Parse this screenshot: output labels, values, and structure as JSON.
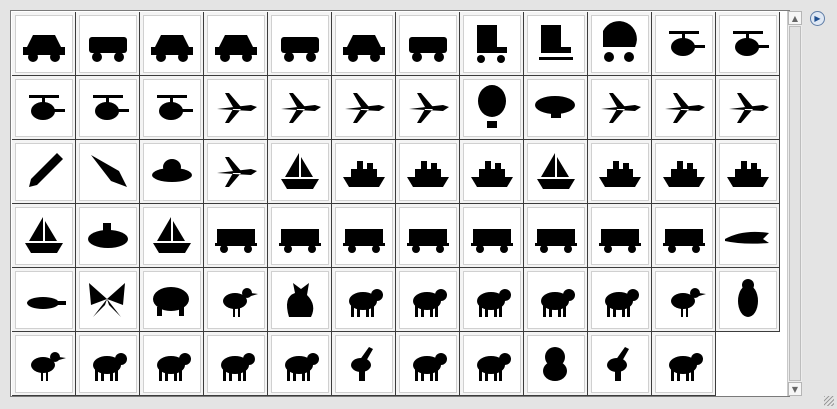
{
  "panel": {
    "menu_icon": "triangle-right-icon",
    "shapes": [
      "car",
      "bus",
      "race-car",
      "sedan",
      "school-bus",
      "taxi",
      "truck",
      "roller-skate",
      "ice-skate",
      "baby-carriage",
      "helicopter-star",
      "helicopter",
      "toy-helicopter",
      "helicopter-side",
      "helicopter-round",
      "jet-plane",
      "prop-plane",
      "airliner",
      "space-shuttle",
      "hot-air-balloon",
      "blimp",
      "biplane",
      "airliner-side",
      "jet-fighter",
      "rocket",
      "rocket-fins",
      "ufo",
      "paper-plane",
      "sailboat",
      "speedboat",
      "cruise-ship",
      "tugboat",
      "sailboat-small",
      "canoe",
      "ocean-liner",
      "cargo-ship",
      "galleon",
      "submarine",
      "windsurfer",
      "locomotive",
      "freight-car",
      "lumber-car",
      "box-car",
      "coal-car",
      "caboose",
      "bullet-train",
      "passenger-car",
      "alligator",
      "platypus",
      "butterfly",
      "hippo",
      "bird",
      "cat",
      "weasel",
      "dog",
      "hound",
      "anteater",
      "elephant",
      "eagle",
      "penguin",
      "crane",
      "otter",
      "horse",
      "horse-running",
      "deer",
      "giraffe",
      "ram",
      "antelope",
      "koala",
      "kangaroo",
      "sheep"
    ]
  }
}
